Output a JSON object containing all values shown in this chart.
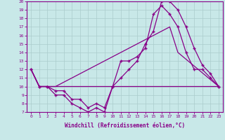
{
  "xlabel": "Windchill (Refroidissement éolien,°C)",
  "xlim": [
    -0.5,
    23.5
  ],
  "ylim": [
    7,
    20
  ],
  "xticks": [
    0,
    1,
    2,
    3,
    4,
    5,
    6,
    7,
    8,
    9,
    10,
    11,
    12,
    13,
    14,
    15,
    16,
    17,
    18,
    19,
    20,
    21,
    22,
    23
  ],
  "yticks": [
    7,
    8,
    9,
    10,
    11,
    12,
    13,
    14,
    15,
    16,
    17,
    18,
    19,
    20
  ],
  "bg_color": "#c8e8e8",
  "grid_color": "#aacccc",
  "line_color": "#880088",
  "series": [
    {
      "x": [
        0,
        1,
        2,
        3,
        4,
        5,
        6,
        7,
        8,
        9,
        10,
        11,
        12,
        13,
        14,
        15,
        16,
        17,
        18,
        19,
        20,
        21,
        22,
        23
      ],
      "y": [
        12,
        10,
        10,
        9,
        9,
        8,
        7.5,
        7,
        7.5,
        7,
        10,
        13,
        13,
        13.5,
        14.5,
        18.5,
        19.5,
        18.5,
        17,
        14,
        12,
        12,
        11,
        10
      ],
      "marker": "+"
    },
    {
      "x": [
        0,
        1,
        2,
        3,
        4,
        5,
        6,
        7,
        8,
        9,
        10,
        11,
        12,
        13,
        14,
        15,
        16,
        17,
        18,
        19,
        20,
        21,
        22,
        23
      ],
      "y": [
        12,
        10,
        10,
        9.5,
        9.5,
        8.5,
        8.5,
        7.5,
        8,
        7.5,
        10,
        11,
        12,
        13,
        15,
        16.5,
        20,
        20,
        19,
        17,
        14.5,
        12.5,
        11.5,
        10
      ],
      "marker": "+"
    },
    {
      "x": [
        0,
        1,
        2,
        3,
        23
      ],
      "y": [
        12,
        10,
        10,
        10,
        10
      ],
      "marker": null
    },
    {
      "x": [
        0,
        1,
        2,
        3,
        17,
        18,
        23
      ],
      "y": [
        12,
        10,
        10,
        10,
        17,
        14,
        10
      ],
      "marker": null
    }
  ]
}
